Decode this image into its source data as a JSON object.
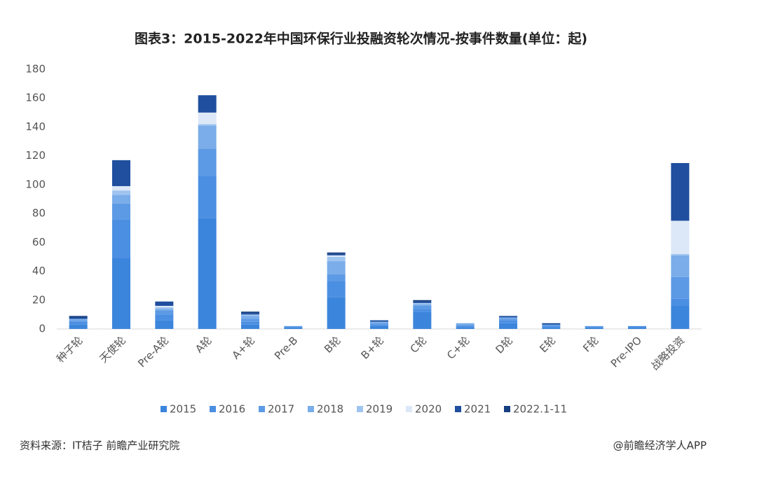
{
  "chart_data": {
    "type": "bar",
    "stacked": true,
    "title": "图表3：2015-2022年中国环保行业投融资轮次情况-按事件数量(单位：起)",
    "categories": [
      "种子轮",
      "天使轮",
      "Pre-A轮",
      "A轮",
      "A+轮",
      "Pre-B",
      "B轮",
      "B+轮",
      "C轮",
      "C+轮",
      "D轮",
      "E轮",
      "F轮",
      "Pre-IPO",
      "战略投资"
    ],
    "series": [
      {
        "name": "2015",
        "color": "#3c85dc",
        "values": [
          3,
          49,
          6,
          77,
          3,
          1,
          22,
          2,
          12,
          1,
          4,
          1,
          1,
          1,
          16
        ]
      },
      {
        "name": "2016",
        "color": "#4b8fe2",
        "values": [
          2,
          27,
          4,
          29,
          2,
          0,
          11,
          1,
          2,
          1,
          2,
          1,
          0,
          1,
          5
        ]
      },
      {
        "name": "2017",
        "color": "#5d9ae5",
        "values": [
          1,
          11,
          3,
          19,
          2,
          1,
          5,
          1,
          2,
          1,
          1,
          1,
          1,
          0,
          15
        ]
      },
      {
        "name": "2018",
        "color": "#7aade9",
        "values": [
          1,
          6,
          1,
          16,
          2,
          0,
          9,
          1,
          1,
          1,
          1,
          0,
          0,
          0,
          15
        ]
      },
      {
        "name": "2019",
        "color": "#a0c4f0",
        "values": [
          0,
          3,
          1,
          1,
          1,
          0,
          3,
          0,
          1,
          0,
          0,
          0,
          0,
          0,
          1
        ]
      },
      {
        "name": "2020",
        "color": "#dce8f7",
        "values": [
          0,
          3,
          1,
          8,
          0,
          0,
          1,
          0,
          0,
          0,
          0,
          0,
          0,
          0,
          23
        ]
      },
      {
        "name": "2021",
        "color": "#1f4f9e",
        "values": [
          1,
          18,
          3,
          12,
          1,
          0,
          1,
          1,
          1,
          0,
          1,
          1,
          0,
          0,
          40
        ]
      },
      {
        "name": "2022.1-11",
        "color": "#173e80",
        "values": [
          1,
          0,
          0,
          0,
          1,
          0,
          1,
          0,
          1,
          0,
          0,
          0,
          0,
          0,
          0
        ]
      }
    ],
    "ylim": [
      0,
      180
    ],
    "yticks": [
      0,
      20,
      40,
      60,
      80,
      100,
      120,
      140,
      160,
      180
    ],
    "grid": false
  },
  "footer": {
    "source": "资料来源：IT桔子 前瞻产业研究院",
    "credit": "@前瞻经济学人APP"
  }
}
